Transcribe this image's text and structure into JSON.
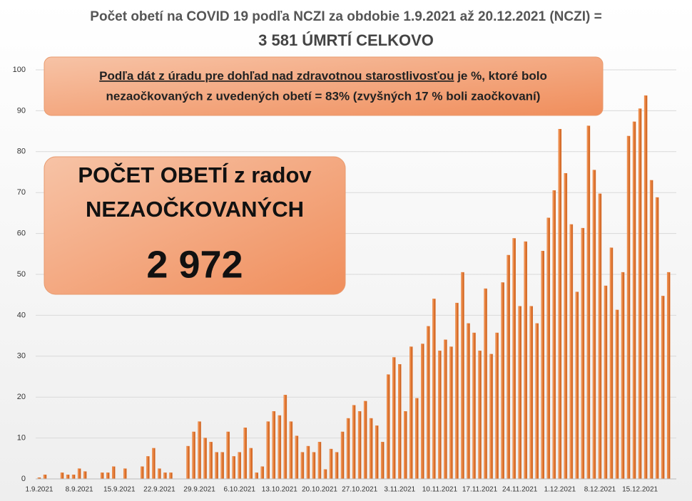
{
  "chart_data": {
    "type": "bar",
    "title": "Počet obetí na COVID 19 podľa NCZI za obdobie 1.9.2021 až 20.12.2021 (NCZI) =",
    "subtitle": "3 581 ÚMRTÍ CELKOVO",
    "note": {
      "underlined": "Podľa dát z úradu pre dohľad nad zdravotnou starostlivosťou",
      "line1_rest": " je %, ktoré bolo",
      "line2": "nezaočkovaných z uvedených obetí = 83% (zvyšných 17 % boli zaočkovaní)"
    },
    "callout": {
      "line1": "POČET OBETÍ z radov",
      "line2": "NEZAOČKOVANÝCH",
      "number": "2 972"
    },
    "categories": [
      "1.9.2021",
      null,
      null,
      null,
      null,
      null,
      null,
      "8.9.2021",
      null,
      null,
      null,
      null,
      null,
      null,
      "15.9.2021",
      null,
      null,
      null,
      null,
      null,
      null,
      "22.9.2021",
      null,
      null,
      null,
      null,
      null,
      null,
      "29.9.2021",
      null,
      null,
      null,
      null,
      null,
      null,
      "6.10.2021",
      null,
      null,
      null,
      null,
      null,
      null,
      "13.10.2021",
      null,
      null,
      null,
      null,
      null,
      null,
      "20.10.2021",
      null,
      null,
      null,
      null,
      null,
      null,
      "27.10.2021",
      null,
      null,
      null,
      null,
      null,
      null,
      "3.11.2021",
      null,
      null,
      null,
      null,
      null,
      null,
      "10.11.2021",
      null,
      null,
      null,
      null,
      null,
      null,
      "17.11.2021",
      null,
      null,
      null,
      null,
      null,
      null,
      "24.11.2021",
      null,
      null,
      null,
      null,
      null,
      null,
      "1.12.2021",
      null,
      null,
      null,
      null,
      null,
      null,
      "8.12.2021",
      null,
      null,
      null,
      null,
      null,
      null,
      "15.12.2021",
      null,
      null,
      null,
      null,
      null
    ],
    "values": [
      0.3,
      1,
      0,
      0,
      1.5,
      1,
      1,
      2.5,
      1.8,
      0,
      0,
      1.5,
      1.5,
      3,
      0,
      2.5,
      0,
      0,
      3,
      5.5,
      7.5,
      2.5,
      1.5,
      1.5,
      0,
      0,
      8,
      11.5,
      14,
      10,
      9,
      6.5,
      6.5,
      11.5,
      5.5,
      6.5,
      12.5,
      7.5,
      1.5,
      3,
      14,
      16.5,
      15.5,
      20.5,
      14,
      10.5,
      6.5,
      8,
      6.5,
      9,
      2.3,
      7.3,
      6.5,
      11.5,
      14.8,
      18,
      16.5,
      19,
      14.8,
      13,
      9,
      25.5,
      29.7,
      28,
      16.5,
      32.3,
      19.7,
      33,
      37.3,
      44,
      31.3,
      34,
      32.3,
      43,
      50.5,
      38,
      35.7,
      31.3,
      46.5,
      30.5,
      35.7,
      48,
      54.7,
      58.8,
      42.2,
      58,
      42.2,
      38,
      55.7,
      63.8,
      70.5,
      85.5,
      74.7,
      62.2,
      45.7,
      61.3,
      86.3,
      75.5,
      69.7,
      47.2,
      56.5,
      41.3,
      50.5,
      83.8,
      87.3,
      90.5,
      93.7,
      73,
      68.8,
      44.7,
      50.5
    ],
    "color": "#e67a33",
    "ylim": [
      0,
      100
    ],
    "yticks": [
      0,
      10,
      20,
      30,
      40,
      50,
      60,
      70,
      80,
      90,
      100
    ],
    "grid": true
  }
}
